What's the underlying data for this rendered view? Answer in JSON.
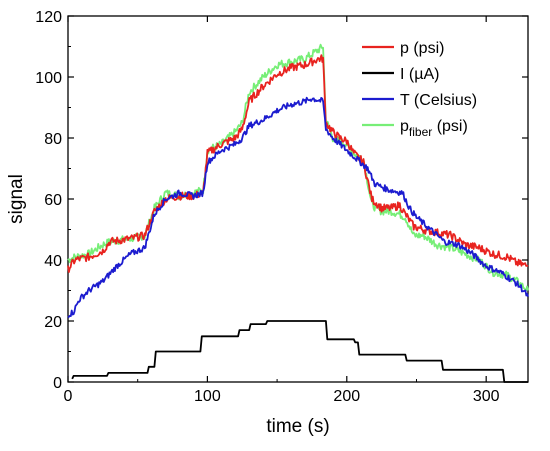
{
  "chart_data": {
    "type": "line",
    "title": "",
    "xlabel": "time (s)",
    "ylabel": "signal",
    "xlim": [
      0,
      330
    ],
    "ylim": [
      0,
      120
    ],
    "x_ticks": [
      0,
      100,
      200,
      300
    ],
    "y_ticks": [
      0,
      20,
      40,
      60,
      80,
      100,
      120
    ],
    "grid": false,
    "legend_position": "top-right",
    "series": [
      {
        "name": "p (psi)",
        "legend_main": "p (psi)",
        "color": "#e8231f",
        "points": [
          [
            0,
            37
          ],
          [
            5,
            40
          ],
          [
            15,
            41
          ],
          [
            25,
            43
          ],
          [
            30,
            46
          ],
          [
            45,
            47
          ],
          [
            55,
            48
          ],
          [
            62,
            56
          ],
          [
            70,
            60
          ],
          [
            80,
            61
          ],
          [
            90,
            61
          ],
          [
            97,
            62
          ],
          [
            100,
            75
          ],
          [
            110,
            78
          ],
          [
            120,
            80
          ],
          [
            125,
            83
          ],
          [
            130,
            92
          ],
          [
            140,
            97
          ],
          [
            150,
            101
          ],
          [
            160,
            103
          ],
          [
            170,
            104
          ],
          [
            180,
            106
          ],
          [
            183,
            106
          ],
          [
            185,
            85
          ],
          [
            190,
            82
          ],
          [
            195,
            80
          ],
          [
            200,
            79
          ],
          [
            205,
            75
          ],
          [
            212,
            72
          ],
          [
            218,
            60
          ],
          [
            225,
            57
          ],
          [
            232,
            57
          ],
          [
            238,
            58
          ],
          [
            242,
            55
          ],
          [
            248,
            51
          ],
          [
            255,
            50
          ],
          [
            265,
            49
          ],
          [
            275,
            48
          ],
          [
            285,
            45
          ],
          [
            295,
            44
          ],
          [
            305,
            42
          ],
          [
            315,
            41
          ],
          [
            322,
            39
          ],
          [
            330,
            38
          ]
        ]
      },
      {
        "name": "I (µA)",
        "legend_main": "I (µA)",
        "color": "#000000",
        "points": [
          [
            3,
            1
          ],
          [
            4,
            2
          ],
          [
            28,
            2
          ],
          [
            29,
            3
          ],
          [
            57,
            3
          ],
          [
            58,
            5
          ],
          [
            62,
            5
          ],
          [
            63,
            10
          ],
          [
            95,
            10
          ],
          [
            96,
            15
          ],
          [
            122,
            15
          ],
          [
            123,
            17
          ],
          [
            130,
            17
          ],
          [
            131,
            19
          ],
          [
            142,
            19
          ],
          [
            143,
            20
          ],
          [
            185,
            20
          ],
          [
            186,
            14
          ],
          [
            205,
            14
          ],
          [
            206,
            13
          ],
          [
            208,
            13
          ],
          [
            209,
            9
          ],
          [
            242,
            9
          ],
          [
            243,
            7
          ],
          [
            268,
            7
          ],
          [
            269,
            4
          ],
          [
            312,
            4
          ],
          [
            313,
            0
          ],
          [
            330,
            0
          ]
        ]
      },
      {
        "name": "T (Celsius)",
        "legend_main": "T (Celsius)",
        "color": "#1c1ccf",
        "points": [
          [
            0,
            22
          ],
          [
            4,
            23
          ],
          [
            8,
            27
          ],
          [
            15,
            30
          ],
          [
            25,
            33
          ],
          [
            35,
            38
          ],
          [
            45,
            42
          ],
          [
            55,
            44
          ],
          [
            62,
            55
          ],
          [
            70,
            60
          ],
          [
            80,
            62
          ],
          [
            90,
            61
          ],
          [
            97,
            62
          ],
          [
            100,
            72
          ],
          [
            110,
            76
          ],
          [
            120,
            78
          ],
          [
            125,
            80
          ],
          [
            130,
            84
          ],
          [
            140,
            86
          ],
          [
            150,
            89
          ],
          [
            160,
            91
          ],
          [
            170,
            92
          ],
          [
            175,
            93
          ],
          [
            183,
            92
          ],
          [
            185,
            83
          ],
          [
            190,
            80
          ],
          [
            195,
            78
          ],
          [
            200,
            76
          ],
          [
            205,
            74
          ],
          [
            210,
            72
          ],
          [
            215,
            70
          ],
          [
            220,
            65
          ],
          [
            230,
            63
          ],
          [
            240,
            62
          ],
          [
            245,
            57
          ],
          [
            250,
            54
          ],
          [
            260,
            50
          ],
          [
            270,
            46
          ],
          [
            280,
            45
          ],
          [
            290,
            42
          ],
          [
            300,
            38
          ],
          [
            310,
            36
          ],
          [
            320,
            33
          ],
          [
            325,
            31
          ],
          [
            330,
            28
          ]
        ]
      },
      {
        "name": "pfiber (psi)",
        "legend_main": "p",
        "legend_sub": "fiber",
        "legend_suffix": " (psi)",
        "color": "#77ee77",
        "points": [
          [
            0,
            40
          ],
          [
            5,
            41
          ],
          [
            15,
            42
          ],
          [
            25,
            45
          ],
          [
            30,
            46
          ],
          [
            45,
            47
          ],
          [
            55,
            48
          ],
          [
            62,
            57
          ],
          [
            70,
            62
          ],
          [
            80,
            61
          ],
          [
            90,
            62
          ],
          [
            97,
            63
          ],
          [
            100,
            76
          ],
          [
            110,
            78
          ],
          [
            120,
            82
          ],
          [
            125,
            85
          ],
          [
            130,
            95
          ],
          [
            140,
            100
          ],
          [
            150,
            104
          ],
          [
            160,
            105
          ],
          [
            170,
            106
          ],
          [
            180,
            109
          ],
          [
            183,
            110
          ],
          [
            185,
            86
          ],
          [
            190,
            80
          ],
          [
            195,
            79
          ],
          [
            200,
            78
          ],
          [
            205,
            75
          ],
          [
            212,
            73
          ],
          [
            218,
            58
          ],
          [
            225,
            56
          ],
          [
            232,
            56
          ],
          [
            238,
            55
          ],
          [
            242,
            54
          ],
          [
            248,
            48
          ],
          [
            255,
            48
          ],
          [
            265,
            45
          ],
          [
            275,
            44
          ],
          [
            285,
            42
          ],
          [
            295,
            40
          ],
          [
            305,
            36
          ],
          [
            315,
            35
          ],
          [
            322,
            33
          ],
          [
            330,
            30
          ]
        ]
      }
    ]
  }
}
